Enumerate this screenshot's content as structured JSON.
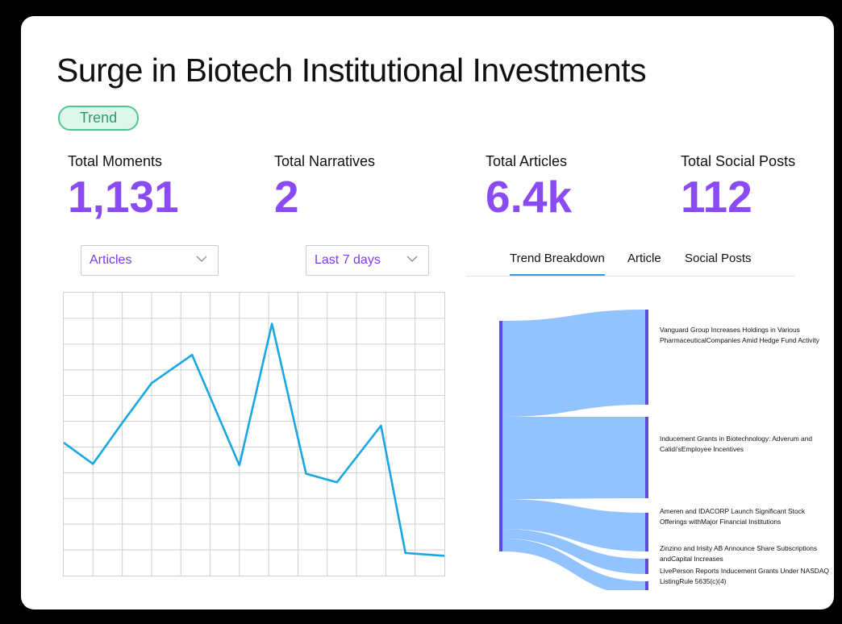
{
  "title": "Surge in Biotech Institutional Investments",
  "badge": "Trend",
  "stats": [
    {
      "label": "Total Moments",
      "value": "1,131"
    },
    {
      "label": "Total Narratives",
      "value": "2"
    },
    {
      "label": "Total Articles",
      "value": "6.4k"
    },
    {
      "label": "Total Social Posts",
      "value": "112"
    }
  ],
  "filters": {
    "type": "Articles",
    "range": "Last 7 days"
  },
  "tabs": [
    "Trend Breakdown",
    "Article",
    "Social Posts"
  ],
  "line_chart": {
    "line_color": "#1aa7e1",
    "values": [
      0.47,
      0.395,
      0.54,
      0.68,
      0.78,
      0.39,
      0.89,
      0.36,
      0.33,
      0.53,
      0.08,
      0.07
    ]
  },
  "sankey": {
    "node_color": "#5a4de0",
    "link_color": "#93c3ff",
    "flows": [
      "Vanguard Group Increases Holdings in Various PharmaceuticalCompanies Amid Hedge Fund Activity",
      "Inducement Grants in Biotechnology: Adverum and Calidi'sEmployee Incentives",
      "Ameren and IDACORP Launch Significant Stock Offerings withMajor Financial Institutions",
      "Zinzino and Irisity AB Announce Share Subscriptions andCapital Increases",
      "LivePerson Reports Inducement Grants Under NASDAQ ListingRule 5635(c)(4)"
    ]
  }
}
